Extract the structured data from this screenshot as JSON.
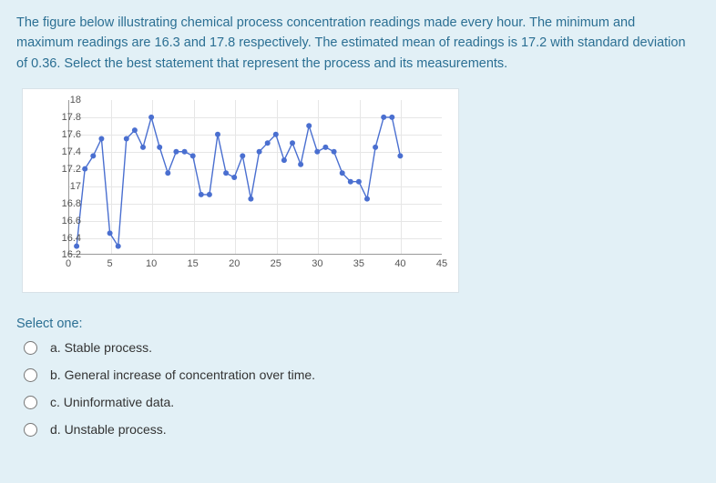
{
  "question": "The figure below illustrating chemical process concentration readings made every hour. The minimum and maximum readings are 16.3 and 17.8 respectively. The estimated mean of readings is 17.2 with standard deviation of 0.36. Select the best statement that represent the process and its measurements.",
  "chart": {
    "type": "line-scatter",
    "background_color": "#ffffff",
    "grid_color": "#e6e6e6",
    "axis_color": "#999999",
    "line_color": "#4a6fd0",
    "marker_color": "#4a6fd0",
    "line_width": 1.4,
    "marker_radius": 3,
    "xlim": [
      0,
      45
    ],
    "ylim": [
      16.2,
      18
    ],
    "xticks": [
      0,
      5,
      10,
      15,
      20,
      25,
      30,
      35,
      40,
      45
    ],
    "yticks": [
      16.2,
      16.4,
      16.6,
      16.8,
      17,
      17.2,
      17.4,
      17.6,
      17.8,
      18
    ],
    "tick_fontsize": 11,
    "data": [
      {
        "x": 1,
        "y": 16.3
      },
      {
        "x": 2,
        "y": 17.2
      },
      {
        "x": 3,
        "y": 17.35
      },
      {
        "x": 4,
        "y": 17.55
      },
      {
        "x": 5,
        "y": 16.45
      },
      {
        "x": 6,
        "y": 16.3
      },
      {
        "x": 7,
        "y": 17.55
      },
      {
        "x": 8,
        "y": 17.65
      },
      {
        "x": 9,
        "y": 17.45
      },
      {
        "x": 10,
        "y": 17.8
      },
      {
        "x": 11,
        "y": 17.45
      },
      {
        "x": 12,
        "y": 17.15
      },
      {
        "x": 13,
        "y": 17.4
      },
      {
        "x": 14,
        "y": 17.4
      },
      {
        "x": 15,
        "y": 17.35
      },
      {
        "x": 16,
        "y": 16.9
      },
      {
        "x": 17,
        "y": 16.9
      },
      {
        "x": 18,
        "y": 17.6
      },
      {
        "x": 19,
        "y": 17.15
      },
      {
        "x": 20,
        "y": 17.1
      },
      {
        "x": 21,
        "y": 17.35
      },
      {
        "x": 22,
        "y": 16.85
      },
      {
        "x": 23,
        "y": 17.4
      },
      {
        "x": 24,
        "y": 17.5
      },
      {
        "x": 25,
        "y": 17.6
      },
      {
        "x": 26,
        "y": 17.3
      },
      {
        "x": 27,
        "y": 17.5
      },
      {
        "x": 28,
        "y": 17.25
      },
      {
        "x": 29,
        "y": 17.7
      },
      {
        "x": 30,
        "y": 17.4
      },
      {
        "x": 31,
        "y": 17.45
      },
      {
        "x": 32,
        "y": 17.4
      },
      {
        "x": 33,
        "y": 17.15
      },
      {
        "x": 34,
        "y": 17.05
      },
      {
        "x": 35,
        "y": 17.05
      },
      {
        "x": 36,
        "y": 16.85
      },
      {
        "x": 37,
        "y": 17.45
      },
      {
        "x": 38,
        "y": 17.8
      },
      {
        "x": 39,
        "y": 17.8
      },
      {
        "x": 40,
        "y": 17.35
      }
    ]
  },
  "select_label": "Select one:",
  "options": [
    {
      "key": "a",
      "label": "a. Stable process."
    },
    {
      "key": "b",
      "label": "b. General increase of concentration over time."
    },
    {
      "key": "c",
      "label": "c. Uninformative data."
    },
    {
      "key": "d",
      "label": "d. Unstable process."
    }
  ]
}
